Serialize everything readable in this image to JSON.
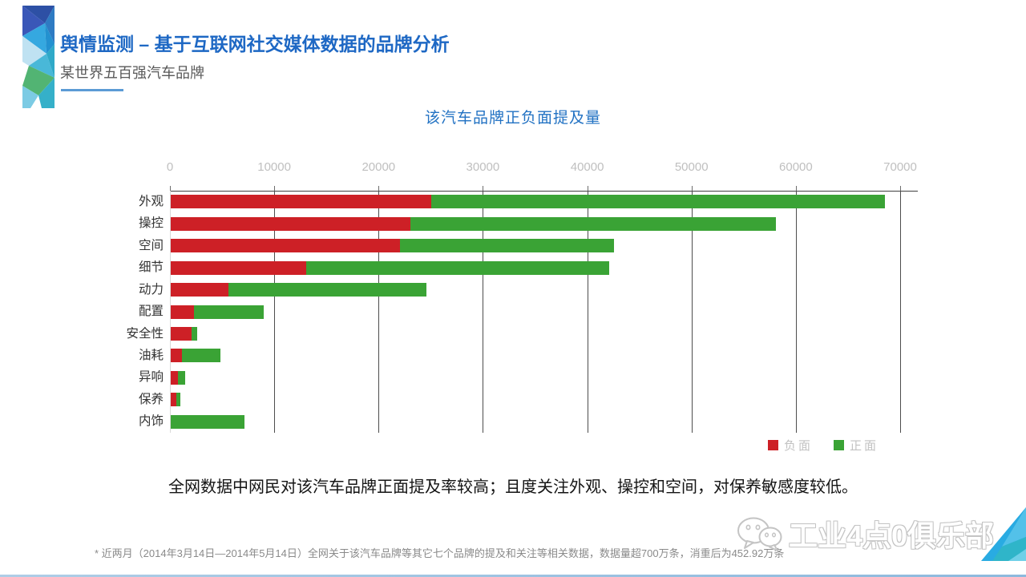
{
  "header": {
    "title": "舆情监测 – 基于互联网社交媒体数据的品牌分析",
    "subtitle": "某世界五百强汽车品牌"
  },
  "chart": {
    "title": "该汽车品牌正负面提及量"
  },
  "chart_data": {
    "type": "bar",
    "orientation": "horizontal",
    "stacked": true,
    "title": "该汽车品牌正负面提及量",
    "categories": [
      "外观",
      "操控",
      "空间",
      "细节",
      "动力",
      "配置",
      "安全性",
      "油耗",
      "异响",
      "保养",
      "内饰"
    ],
    "series": [
      {
        "key": "negative",
        "name": "负面",
        "color": "#cd2026",
        "values": [
          25000,
          23000,
          22000,
          13000,
          5500,
          2200,
          2000,
          1100,
          700,
          500,
          0
        ]
      },
      {
        "key": "positive",
        "name": "正面",
        "color": "#3aa335",
        "values": [
          43500,
          35000,
          20500,
          29000,
          19000,
          6700,
          500,
          3650,
          700,
          450,
          7100
        ]
      }
    ],
    "x_ticks": [
      0,
      10000,
      20000,
      30000,
      40000,
      50000,
      60000,
      70000
    ],
    "xlim": [
      0,
      70000
    ],
    "grid": true,
    "gridline_color": "#4d4d4d",
    "axis_label_color": "#bfbfbf",
    "legend_position": "bottom-right"
  },
  "insight": "全网数据中网民对该汽车品牌正面提及率较高；且度关注外观、操控和空间，对保养敏感度较低。",
  "footnote": "* 近两月（2014年3月14日—2014年5月14日）全网关于该汽车品牌等其它七个品牌的提及和关注等相关数据，数据量超700万条，消重后为452.92万条",
  "watermark": {
    "text": "工业4点0俱乐部",
    "icon": "wechat-icon"
  },
  "colors": {
    "accent_blue": "#1e68c4",
    "underline_blue": "#5b9bd5"
  }
}
